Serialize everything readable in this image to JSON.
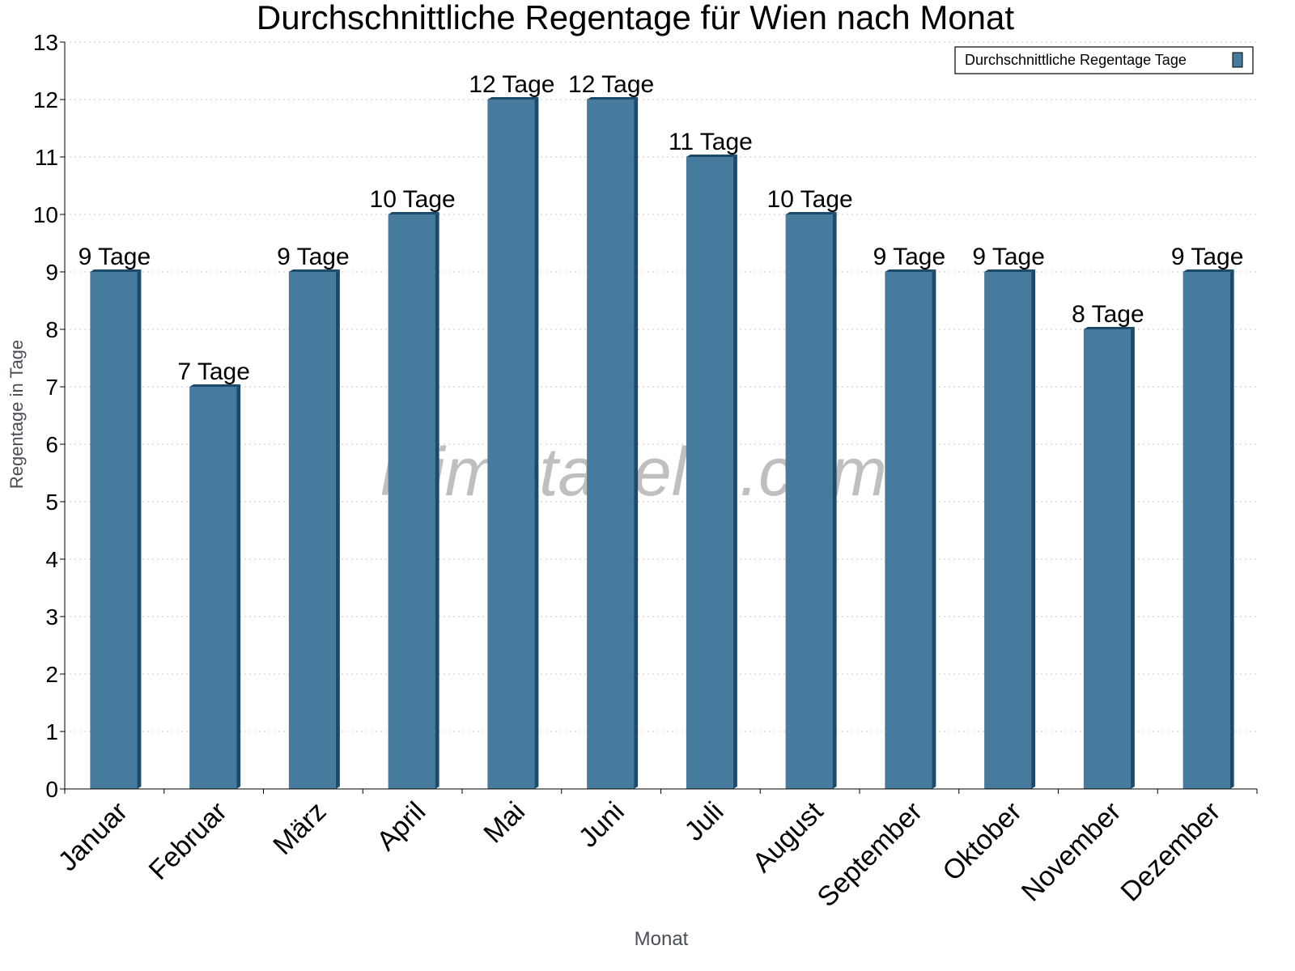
{
  "chart_data": {
    "type": "bar",
    "title": "Durchschnittliche Regentage für Wien nach Monat",
    "xlabel": "Monat",
    "ylabel": "Regentage in Tage",
    "categories": [
      "Januar",
      "Februar",
      "März",
      "April",
      "Mai",
      "Juni",
      "Juli",
      "August",
      "September",
      "Oktober",
      "November",
      "Dezember"
    ],
    "series": [
      {
        "name": "Durchschnittliche Regentage Tage",
        "values": [
          9,
          7,
          9,
          10,
          12,
          12,
          11,
          10,
          9,
          9,
          8,
          9
        ],
        "color": "#467b9e",
        "side_color": "#1c4a6b"
      }
    ],
    "data_labels": [
      "9 Tage",
      "7 Tage",
      "9 Tage",
      "10 Tage",
      "12 Tage",
      "12 Tage",
      "11 Tage",
      "10 Tage",
      "9 Tage",
      "9 Tage",
      "8 Tage",
      "9 Tage"
    ],
    "ylim": [
      0,
      13
    ],
    "yticks": [
      0,
      1,
      2,
      3,
      4,
      5,
      6,
      7,
      8,
      9,
      10,
      11,
      12,
      13
    ],
    "grid": true,
    "legend_position": "top-right",
    "watermark": "klimatabelle.com"
  }
}
